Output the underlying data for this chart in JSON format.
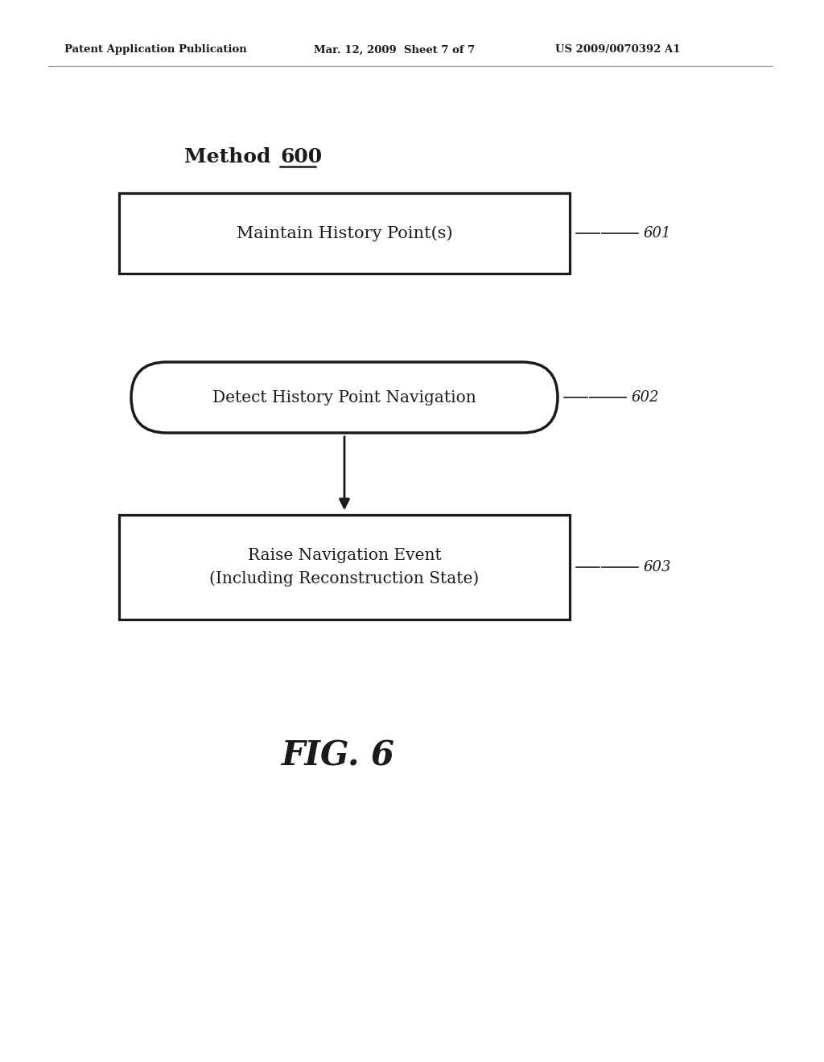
{
  "background_color": "#ffffff",
  "header_left": "Patent Application Publication",
  "header_center": "Mar. 12, 2009  Sheet 7 of 7",
  "header_right": "US 2009/0070392 A1",
  "title_normal": "Method ",
  "title_underline": "600",
  "box1_text": "Maintain History Point(s)",
  "box1_label": "601",
  "box2_text": "Detect History Point Navigation",
  "box2_label": "602",
  "box3_line1": "Raise Navigation Event",
  "box3_line2": "(Including Reconstruction State)",
  "box3_label": "603",
  "fig_label": "FIG. 6",
  "box_color": "#ffffff",
  "box_edge_color": "#1a1a1a",
  "text_color": "#1a1a1a",
  "arrow_color": "#1a1a1a",
  "header_line_color": "#888888"
}
